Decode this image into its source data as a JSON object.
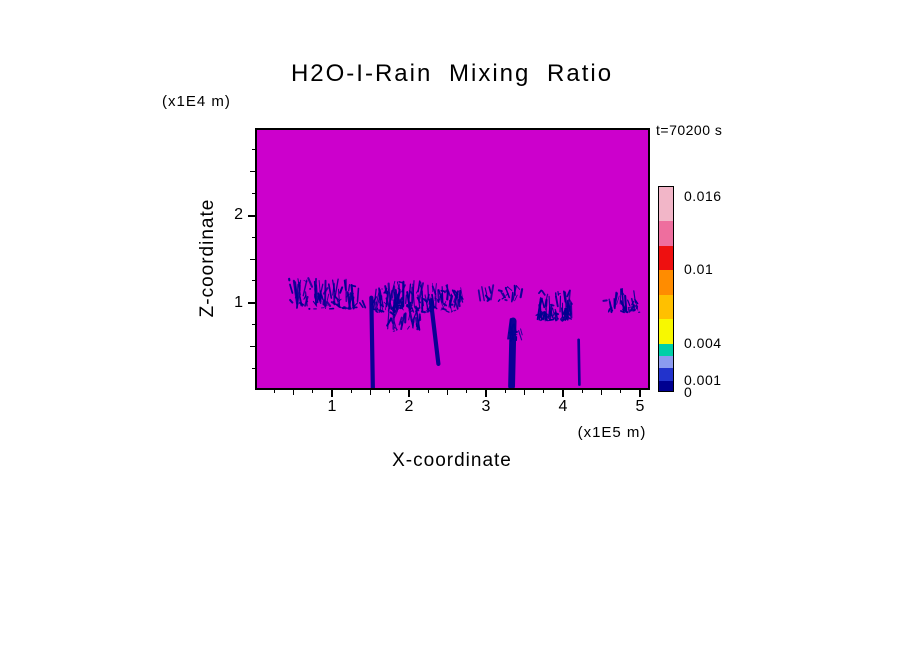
{
  "chart_data": {
    "type": "heatmap",
    "title": "H2O-I-Rain Mixing Ratio",
    "xlabel": "X-coordinate",
    "ylabel": "Z-coordinate",
    "x_units": "(x1E5 m)",
    "y_units": "(x1E4 m)",
    "time_annotation": "t=70200 s",
    "xlim": [
      0,
      5.13
    ],
    "ylim": [
      0,
      3.0
    ],
    "x_ticks": [
      1,
      2,
      3,
      4,
      5
    ],
    "y_ticks": [
      1,
      2
    ],
    "grid": false,
    "background_value_color": "#CC00CC",
    "rain_color": "#000090",
    "colorbar": {
      "position": "right",
      "labels": [
        "0.016",
        "0.01",
        "0.004",
        "0.001",
        "0"
      ],
      "label_values": [
        0.016,
        0.01,
        0.004,
        0.001,
        0
      ],
      "max_value": 0.0168,
      "segments": [
        {
          "from": 0,
          "to": 0.001,
          "color": "#000090"
        },
        {
          "from": 0.001,
          "to": 0.002,
          "color": "#2233CC"
        },
        {
          "from": 0.002,
          "to": 0.003,
          "color": "#8C9BF0"
        },
        {
          "from": 0.003,
          "to": 0.004,
          "color": "#00CFA8"
        },
        {
          "from": 0.004,
          "to": 0.006,
          "color": "#F8F800"
        },
        {
          "from": 0.006,
          "to": 0.008,
          "color": "#FFC000"
        },
        {
          "from": 0.008,
          "to": 0.01,
          "color": "#FF8C00"
        },
        {
          "from": 0.01,
          "to": 0.012,
          "color": "#EE1010"
        },
        {
          "from": 0.012,
          "to": 0.014,
          "color": "#EE6E9E"
        },
        {
          "from": 0.014,
          "to": 0.0168,
          "color": "#F2B6C8"
        }
      ]
    },
    "features": [
      {
        "type": "band",
        "x0": 0.42,
        "x1": 1.42,
        "z0": 0.92,
        "z1": 1.28,
        "density": 85
      },
      {
        "type": "band",
        "x0": 1.55,
        "x1": 2.68,
        "z0": 0.88,
        "z1": 1.25,
        "density": 150
      },
      {
        "type": "band",
        "x0": 1.72,
        "x1": 2.15,
        "z0": 0.66,
        "z1": 0.95,
        "density": 28
      },
      {
        "type": "band",
        "x0": 2.88,
        "x1": 3.5,
        "z0": 1.0,
        "z1": 1.2,
        "density": 24
      },
      {
        "type": "band",
        "x0": 3.3,
        "x1": 3.46,
        "z0": 0.55,
        "z1": 0.82,
        "density": 14
      },
      {
        "type": "band",
        "x0": 3.7,
        "x1": 4.12,
        "z0": 0.78,
        "z1": 1.14,
        "density": 85
      },
      {
        "type": "band",
        "x0": 4.58,
        "x1": 5.02,
        "z0": 0.88,
        "z1": 1.18,
        "density": 40
      },
      {
        "type": "shaft",
        "x": 1.5,
        "z0": 0.0,
        "z1": 1.05,
        "w": 0.055,
        "tilt": 0.02
      },
      {
        "type": "shaft",
        "x": 2.28,
        "z0": 0.28,
        "z1": 1.02,
        "w": 0.055,
        "tilt": 0.1
      },
      {
        "type": "shaft",
        "x": 3.36,
        "z0": 0.02,
        "z1": 0.78,
        "w": 0.09,
        "tilt": -0.02
      },
      {
        "type": "shaft",
        "x": 4.22,
        "z0": 0.04,
        "z1": 0.56,
        "w": 0.035,
        "tilt": 0.01
      }
    ]
  }
}
